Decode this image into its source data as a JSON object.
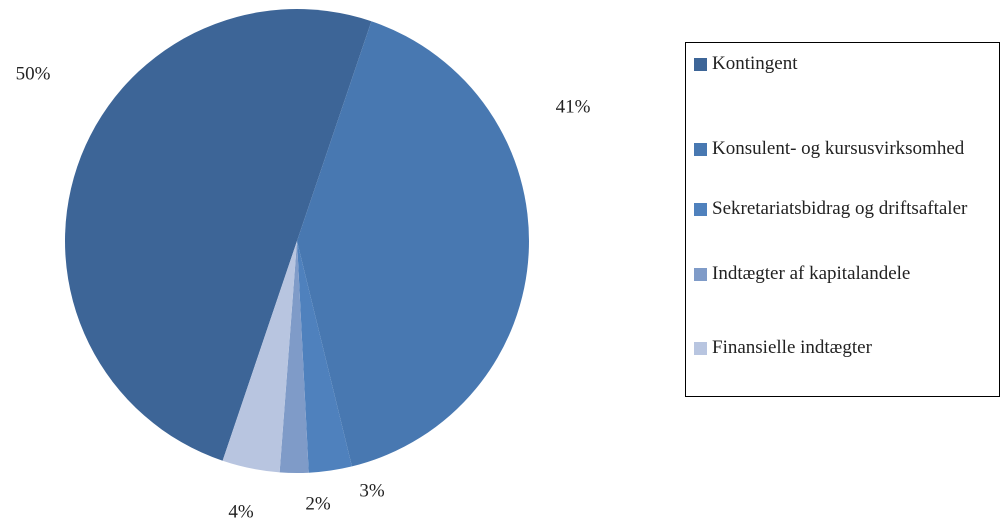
{
  "chart_data": {
    "type": "pie",
    "categories": [
      "Kontingent",
      "Konsulent- og kursusvirksomhed",
      "Sekretariatsbidrag og driftsaftaler",
      "Indtægter af kapitalandele",
      "Finansielle indtægter"
    ],
    "values": [
      50,
      41,
      3,
      2,
      4
    ],
    "value_labels": [
      "50%",
      "41%",
      "3%",
      "2%",
      "4%"
    ],
    "colors": [
      "#3d6597",
      "#4878b1",
      "#4f81bd",
      "#7f9bc8",
      "#b8c5e0"
    ],
    "legend": "right"
  }
}
